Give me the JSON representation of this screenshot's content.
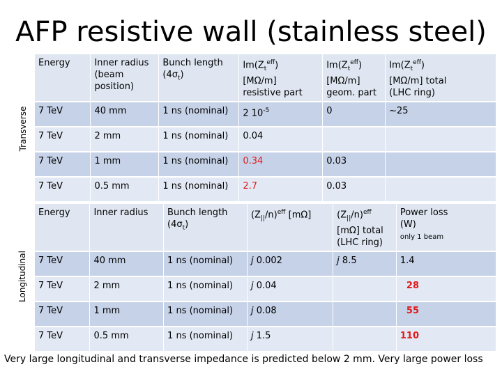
{
  "title": "AFP resistive wall (stainless steel)",
  "side_labels": {
    "transverse": "Transverse",
    "longitudinal": "Longitudinal"
  },
  "transverse": {
    "headers": {
      "energy": "Energy",
      "radius_line1": "Inner radius",
      "radius_line2": "(beam",
      "radius_line3": "position)",
      "bunch_line1": "Bunch length",
      "bunch_line2": "(4σ",
      "bunch_sub": "t",
      "bunch_close": ")",
      "im1_prefix": "Im(Z",
      "im1_sub": "t",
      "im1_sup": "eff",
      "im1_suffix": ")",
      "im1_unit": "[MΩ/m]",
      "im1_desc": "resistive part",
      "im2_prefix": "Im(Z",
      "im2_sub": "t",
      "im2_sup": "eff",
      "im2_suffix": ")",
      "im2_unit": "[MΩ/m]",
      "im2_desc": "geom. part",
      "im3_prefix": "Im(Z",
      "im3_sub": "t",
      "im3_sup": "eff",
      "im3_suffix": ")",
      "im3_unit": "[MΩ/m] total",
      "im3_desc": "(LHC ring)"
    },
    "rows": [
      {
        "energy": "7 TeV",
        "radius": "40 mm",
        "bunch": "1 ns (nominal)",
        "res": "2 10",
        "res_exp": "-5",
        "geom": "0",
        "total": "~25"
      },
      {
        "energy": "7 TeV",
        "radius": "2 mm",
        "bunch": "1 ns (nominal)",
        "res": "0.04",
        "res_exp": "",
        "geom": "",
        "total": ""
      },
      {
        "energy": "7 TeV",
        "radius": "1 mm",
        "bunch": "1 ns (nominal)",
        "res": "0.34",
        "res_exp": "",
        "geom": "0.03",
        "total": ""
      },
      {
        "energy": "7 TeV",
        "radius": "0.5 mm",
        "bunch": "1 ns (nominal)",
        "res": "2.7",
        "res_exp": "",
        "geom": "0.03",
        "total": ""
      }
    ]
  },
  "longitudinal": {
    "headers": {
      "energy": "Energy",
      "radius": "Inner radius",
      "bunch_line1": "Bunch length",
      "bunch_line2": "(4σ",
      "bunch_sub": "t",
      "bunch_close": ")",
      "z1": "(Z",
      "z1_sub": "||",
      "z1_mid": "/n)",
      "z1_sup": "eff",
      "z1_unit": " [mΩ]",
      "z2": "(Z",
      "z2_sub": "||",
      "z2_mid": "/n)",
      "z2_sup": "eff",
      "z2_unit": "[mΩ] total",
      "z2_desc": "(LHC ring)",
      "power": "Power loss",
      "power_unit": "(W)",
      "power_note": "only 1 beam"
    },
    "rows": [
      {
        "energy": "7 TeV",
        "radius": "40 mm",
        "bunch": "1 ns (nominal)",
        "z_j": "j",
        "z_val": " 0.002",
        "tot_j": "j",
        "tot_val": " 8.5",
        "power": "1.4"
      },
      {
        "energy": "7 TeV",
        "radius": "2 mm",
        "bunch": "1 ns (nominal)",
        "z_j": "j",
        "z_val": " 0.04",
        "tot_j": "",
        "tot_val": "",
        "power": "28"
      },
      {
        "energy": "7 TeV",
        "radius": "1 mm",
        "bunch": "1 ns (nominal)",
        "z_j": "j",
        "z_val": " 0.08",
        "tot_j": "",
        "tot_val": "",
        "power": "55"
      },
      {
        "energy": "7 TeV",
        "radius": "0.5 mm",
        "bunch": "1 ns (nominal)",
        "z_j": "j",
        "z_val": " 1.5",
        "tot_j": "",
        "tot_val": "",
        "power": "110"
      }
    ]
  },
  "footer": "Very large longitudinal and transverse impedance is predicted below 2 mm. Very large power loss",
  "colors": {
    "red": "#e21a1a",
    "row_dark": "#c6d2e8",
    "row_light": "#e3e9f4"
  }
}
